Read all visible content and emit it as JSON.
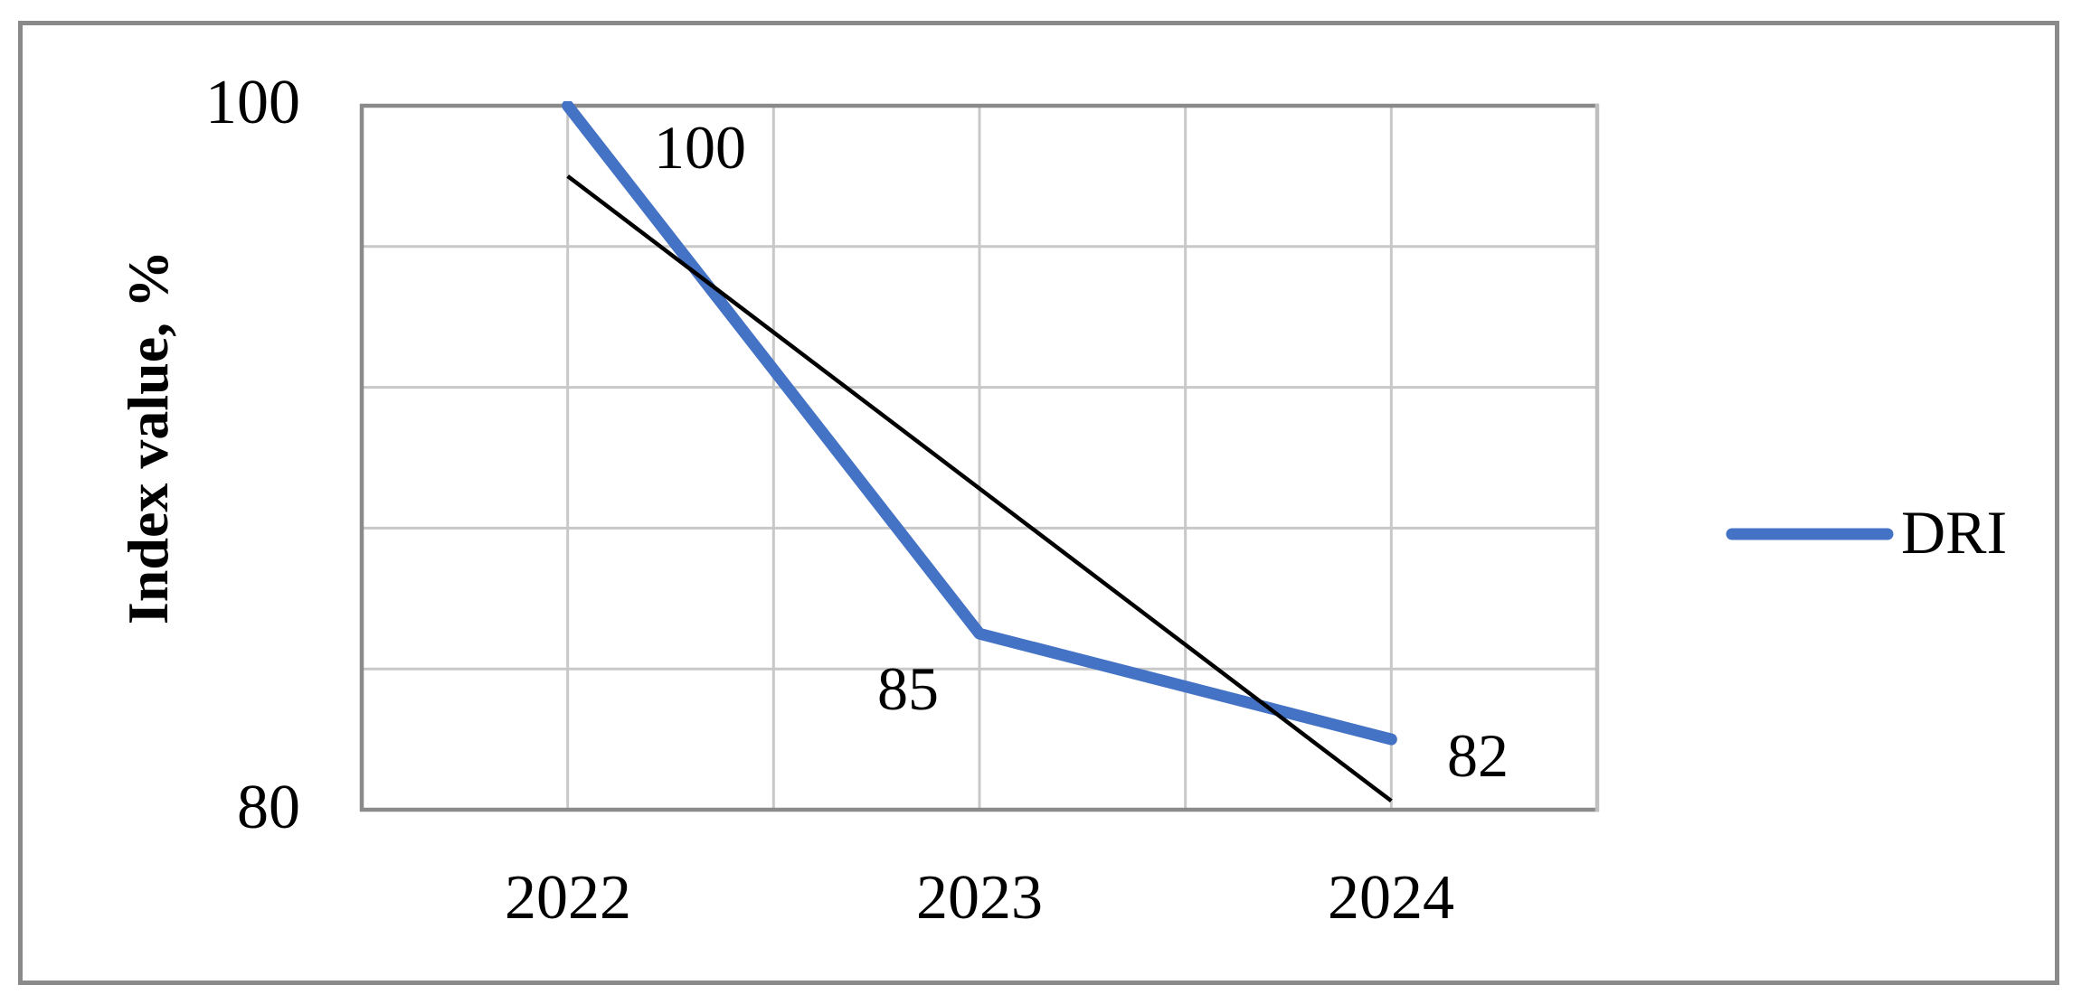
{
  "figure": {
    "background_color": "#FFFFFF",
    "border_color": "#8A8A8A"
  },
  "chart_data": {
    "type": "line",
    "title": "",
    "xlabel": "",
    "ylabel": "Index value, %",
    "categories": [
      "2022",
      "2023",
      "2024"
    ],
    "series": [
      {
        "name": "DRI",
        "color": "#4472C4",
        "values": [
          100,
          85,
          82
        ],
        "data_labels": [
          "100",
          "85",
          "82"
        ]
      }
    ],
    "trendline": {
      "color": "#000000",
      "start_value": 98,
      "end_value": 80.25
    },
    "ylim": [
      80,
      100
    ],
    "y_major_unit": 4,
    "y_axis_tick_labels": {
      "top": "100",
      "bottom": "80"
    },
    "grid": "both",
    "gridline_color": "#C8C8C8",
    "axis_line_color": "#8A8A8A",
    "right_border_color": "#BFBFBF",
    "legend": {
      "position": "right",
      "entries": [
        "DRI"
      ]
    }
  }
}
